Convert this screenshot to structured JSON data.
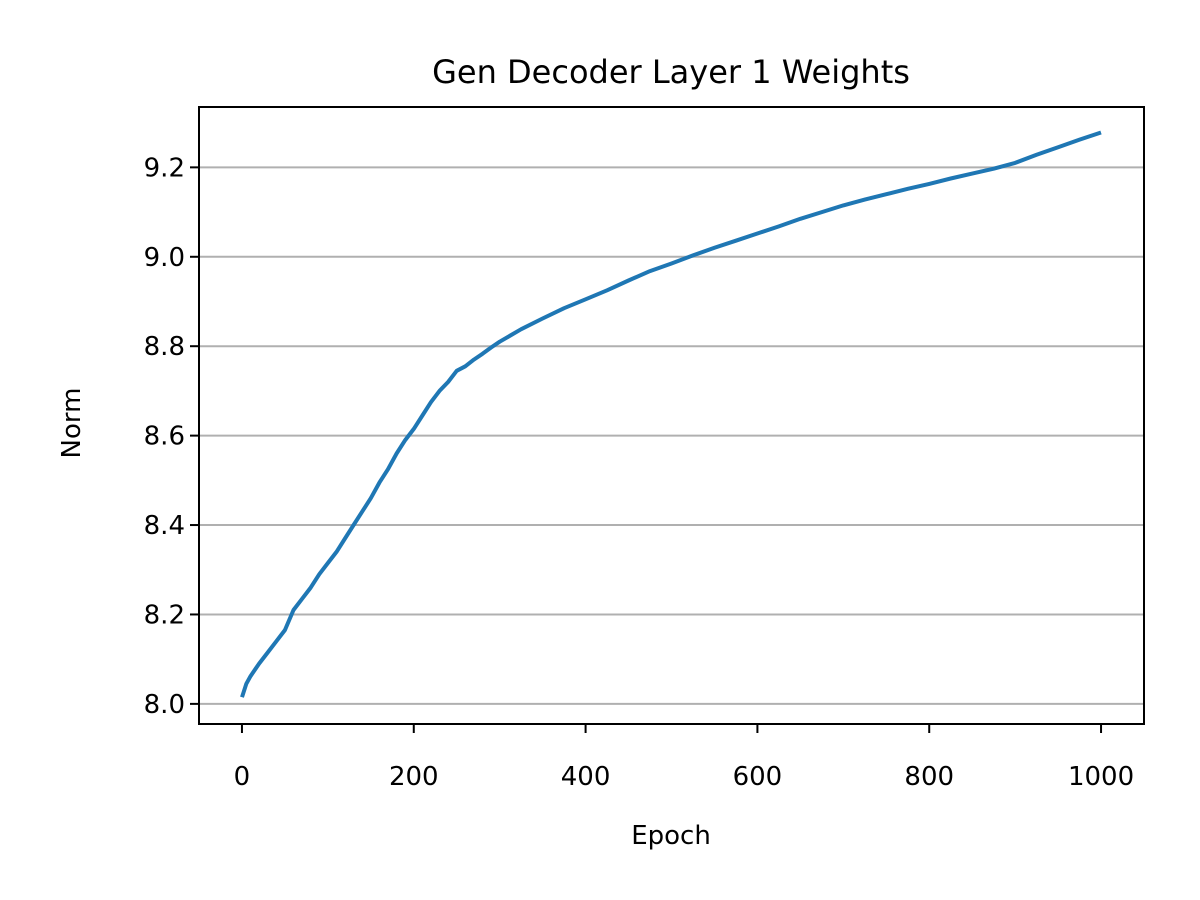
{
  "chart_data": {
    "type": "line",
    "title": "Gen Decoder Layer 1 Weights",
    "xlabel": "Epoch",
    "ylabel": "Norm",
    "xlim": [
      -50,
      1050
    ],
    "ylim": [
      7.955,
      9.335
    ],
    "xticks": [
      "0",
      "200",
      "400",
      "600",
      "800",
      "1000"
    ],
    "yticks": [
      "8.0",
      "8.2",
      "8.4",
      "8.6",
      "8.8",
      "9.0",
      "9.2"
    ],
    "grid": "horizontal",
    "series": [
      {
        "color": "#1f77b4",
        "x": [
          0,
          5,
          10,
          20,
          30,
          40,
          50,
          60,
          70,
          80,
          90,
          100,
          110,
          120,
          130,
          140,
          150,
          160,
          170,
          180,
          190,
          200,
          210,
          220,
          230,
          240,
          250,
          260,
          270,
          280,
          290,
          300,
          325,
          350,
          375,
          400,
          425,
          450,
          475,
          500,
          525,
          550,
          575,
          600,
          625,
          650,
          675,
          700,
          725,
          750,
          775,
          800,
          825,
          850,
          875,
          900,
          925,
          950,
          975,
          1000
        ],
        "y": [
          8.015,
          8.045,
          8.062,
          8.09,
          8.115,
          8.14,
          8.165,
          8.21,
          8.235,
          8.26,
          8.29,
          8.315,
          8.34,
          8.37,
          8.4,
          8.43,
          8.46,
          8.495,
          8.525,
          8.56,
          8.59,
          8.615,
          8.645,
          8.675,
          8.7,
          8.72,
          8.745,
          8.755,
          8.77,
          8.783,
          8.797,
          8.81,
          8.838,
          8.862,
          8.885,
          8.905,
          8.925,
          8.947,
          8.968,
          8.985,
          9.003,
          9.02,
          9.036,
          9.052,
          9.068,
          9.085,
          9.1,
          9.115,
          9.128,
          9.14,
          9.152,
          9.163,
          9.175,
          9.186,
          9.197,
          9.21,
          9.228,
          9.245,
          9.262,
          9.278
        ]
      }
    ]
  }
}
